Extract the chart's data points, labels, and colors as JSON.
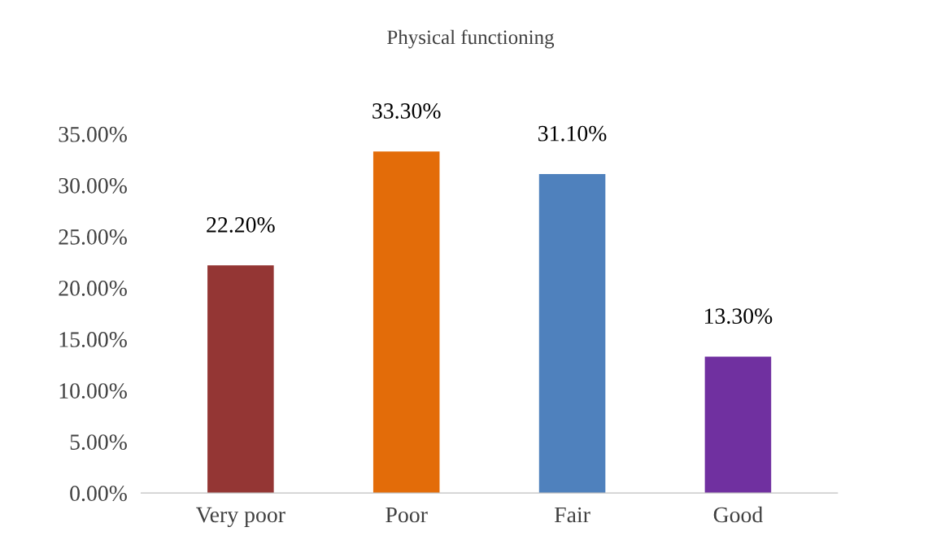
{
  "chart_data": {
    "type": "bar",
    "title": "Physical functioning",
    "categories": [
      "Very poor",
      "Poor",
      "Fair",
      "Good"
    ],
    "values": [
      22.2,
      33.3,
      31.1,
      13.3
    ],
    "value_labels": [
      "22.20%",
      "33.30%",
      "31.10%",
      "13.30%"
    ],
    "colors": [
      "#943634",
      "#e36c09",
      "#4f81bd",
      "#7030a0"
    ],
    "ylim": [
      0,
      35
    ],
    "yticks": [
      {
        "value": 0,
        "label": "0.00%"
      },
      {
        "value": 5,
        "label": "5.00%"
      },
      {
        "value": 10,
        "label": "10.00%"
      },
      {
        "value": 15,
        "label": "15.00%"
      },
      {
        "value": 20,
        "label": "20.00%"
      },
      {
        "value": 25,
        "label": "25.00%"
      },
      {
        "value": 30,
        "label": "30.00%"
      },
      {
        "value": 35,
        "label": "35.00%"
      }
    ],
    "grid": false,
    "legend": false
  }
}
